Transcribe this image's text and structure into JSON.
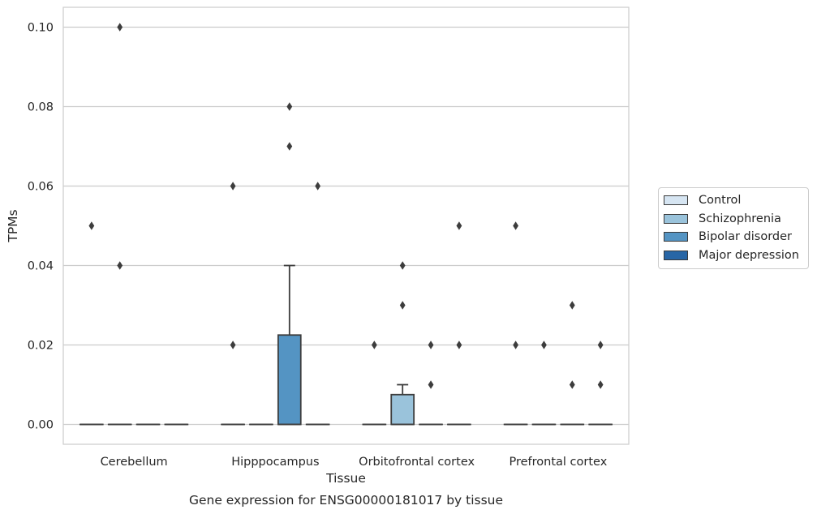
{
  "chart_data": {
    "type": "box",
    "title": "Gene expression for ENSG00000181017 by tissue",
    "xlabel": "Tissue",
    "ylabel": "TPMs",
    "ylim": [
      -0.005,
      0.105
    ],
    "yticks": [
      "0.00",
      "0.02",
      "0.04",
      "0.06",
      "0.08",
      "0.10"
    ],
    "grid": true,
    "legend_position": "right",
    "categories": [
      "Cerebellum",
      "Hipppocampus",
      "Orbitofrontal cortex",
      "Prefrontal cortex"
    ],
    "series": [
      {
        "name": "Control",
        "color": "#d6e5f2",
        "boxes": [
          {
            "category": "Cerebellum",
            "q1": 0,
            "median": 0,
            "q3": 0,
            "whisker_low": 0,
            "whisker_high": 0,
            "outliers": [
              0.05
            ]
          },
          {
            "category": "Hipppocampus",
            "q1": 0,
            "median": 0,
            "q3": 0,
            "whisker_low": 0,
            "whisker_high": 0,
            "outliers": [
              0.06,
              0.02
            ]
          },
          {
            "category": "Orbitofrontal cortex",
            "q1": 0,
            "median": 0,
            "q3": 0,
            "whisker_low": 0,
            "whisker_high": 0,
            "outliers": [
              0.02
            ]
          },
          {
            "category": "Prefrontal cortex",
            "q1": 0,
            "median": 0,
            "q3": 0,
            "whisker_low": 0,
            "whisker_high": 0,
            "outliers": [
              0.05,
              0.02
            ]
          }
        ]
      },
      {
        "name": "Schizophrenia",
        "color": "#9ac3db",
        "boxes": [
          {
            "category": "Cerebellum",
            "q1": 0,
            "median": 0,
            "q3": 0,
            "whisker_low": 0,
            "whisker_high": 0,
            "outliers": [
              0.1,
              0.04
            ]
          },
          {
            "category": "Hipppocampus",
            "q1": 0,
            "median": 0,
            "q3": 0,
            "whisker_low": 0,
            "whisker_high": 0,
            "outliers": []
          },
          {
            "category": "Orbitofrontal cortex",
            "q1": 0,
            "median": 0,
            "q3": 0.0075,
            "whisker_low": 0,
            "whisker_high": 0.01,
            "outliers": [
              0.04,
              0.03
            ]
          },
          {
            "category": "Prefrontal cortex",
            "q1": 0,
            "median": 0,
            "q3": 0,
            "whisker_low": 0,
            "whisker_high": 0,
            "outliers": [
              0.02
            ]
          }
        ]
      },
      {
        "name": "Bipolar disorder",
        "color": "#5494c3",
        "boxes": [
          {
            "category": "Cerebellum",
            "q1": 0,
            "median": 0,
            "q3": 0,
            "whisker_low": 0,
            "whisker_high": 0,
            "outliers": []
          },
          {
            "category": "Hipppocampus",
            "q1": 0,
            "median": 0,
            "q3": 0.0225,
            "whisker_low": 0,
            "whisker_high": 0.04,
            "outliers": [
              0.08,
              0.07
            ]
          },
          {
            "category": "Orbitofrontal cortex",
            "q1": 0,
            "median": 0,
            "q3": 0,
            "whisker_low": 0,
            "whisker_high": 0,
            "outliers": [
              0.02,
              0.01
            ]
          },
          {
            "category": "Prefrontal cortex",
            "q1": 0,
            "median": 0,
            "q3": 0,
            "whisker_low": 0,
            "whisker_high": 0,
            "outliers": [
              0.03,
              0.01
            ]
          }
        ]
      },
      {
        "name": "Major depression",
        "color": "#2866a6",
        "boxes": [
          {
            "category": "Cerebellum",
            "q1": 0,
            "median": 0,
            "q3": 0,
            "whisker_low": 0,
            "whisker_high": 0,
            "outliers": []
          },
          {
            "category": "Hipppocampus",
            "q1": 0,
            "median": 0,
            "q3": 0,
            "whisker_low": 0,
            "whisker_high": 0,
            "outliers": [
              0.06
            ]
          },
          {
            "category": "Orbitofrontal cortex",
            "q1": 0,
            "median": 0,
            "q3": 0,
            "whisker_low": 0,
            "whisker_high": 0,
            "outliers": [
              0.05,
              0.02
            ]
          },
          {
            "category": "Prefrontal cortex",
            "q1": 0,
            "median": 0,
            "q3": 0,
            "whisker_low": 0,
            "whisker_high": 0,
            "outliers": [
              0.02,
              0.01
            ]
          }
        ]
      }
    ]
  }
}
